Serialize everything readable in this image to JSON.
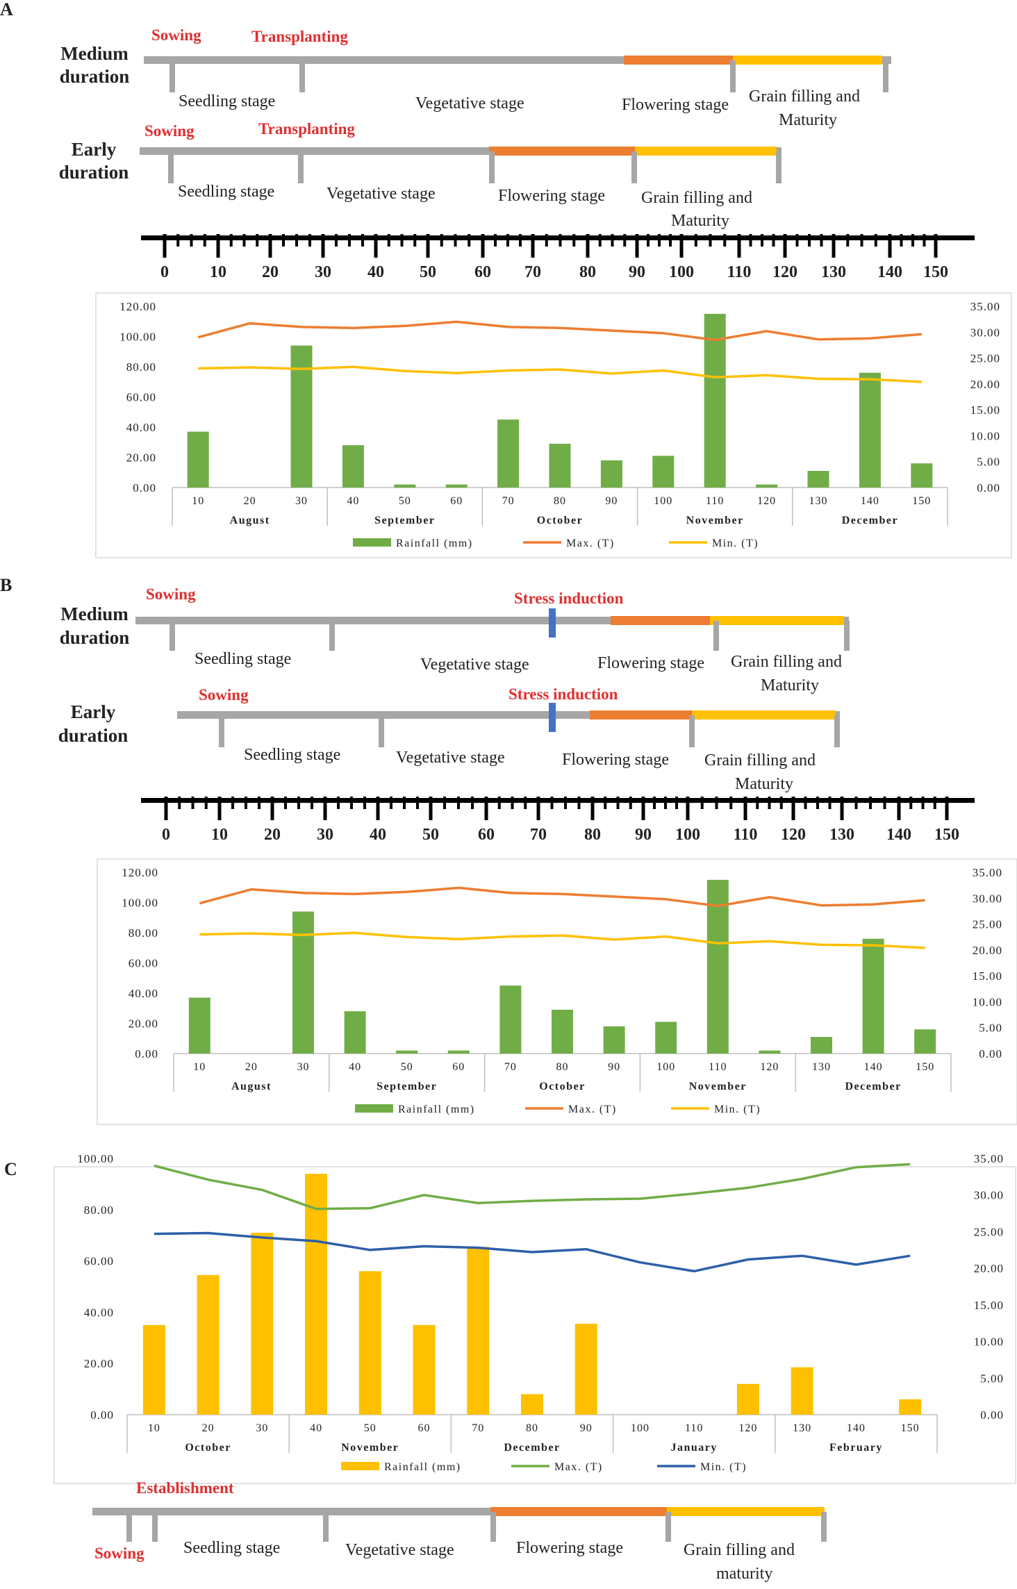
{
  "panels": [
    {
      "label": "A",
      "medium": {
        "label_line1": "Medium",
        "label_line2": "duration",
        "sowing": "Sowing",
        "event": "Transplanting",
        "stages": {
          "seedling": "Seedling stage",
          "vegetative": "Vegetative stage",
          "flowering": "Flowering stage",
          "grain1": "Grain filling and",
          "grain2": "Maturity"
        }
      },
      "early": {
        "label_line1": "Early",
        "label_line2": "duration",
        "sowing": "Sowing",
        "event": "Transplanting",
        "stages": {
          "seedling": "Seedling stage",
          "vegetative": "Vegetative stage",
          "flowering": "Flowering stage",
          "grain1": "Grain filling and",
          "grain2": "Maturity"
        }
      },
      "scale_ticks": [
        "0",
        "10",
        "20",
        "30",
        "40",
        "50",
        "60",
        "70",
        "80",
        "90",
        "100",
        "110",
        "120",
        "130",
        "140",
        "150"
      ]
    },
    {
      "label": "B",
      "medium": {
        "label_line1": "Medium",
        "label_line2": "duration",
        "sowing": "Sowing",
        "event": "Stress induction",
        "stages": {
          "seedling": "Seedling stage",
          "vegetative": "Vegetative stage",
          "flowering": "Flowering stage",
          "grain1": "Grain filling and",
          "grain2": "Maturity"
        }
      },
      "early": {
        "label_line1": "Early",
        "label_line2": "duration",
        "sowing": "Sowing",
        "event": "Stress induction",
        "stages": {
          "seedling": "Seedling stage",
          "vegetative": "Vegetative stage",
          "flowering": "Flowering stage",
          "grain1": "Grain filling and",
          "grain2": "Maturity"
        }
      },
      "scale_ticks": [
        "0",
        "10",
        "20",
        "30",
        "40",
        "50",
        "60",
        "70",
        "80",
        "90",
        "100",
        "110",
        "120",
        "130",
        "140",
        "150"
      ]
    },
    {
      "label": "C",
      "bottom": {
        "establishment": "Establishment",
        "sowing": "Sowing",
        "stages": {
          "seedling": "Seedling stage",
          "vegetative": "Vegetative stage",
          "flowering": "Flowering stage",
          "grain1": "Grain filling and",
          "grain2": "maturity"
        }
      }
    }
  ],
  "colors": {
    "gray": "#a6a6a6",
    "orange": "#ed7d31",
    "yellow": "#ffc000",
    "red_text": "#e03030",
    "blue": "#4472c4",
    "green": "#70ad47",
    "chart_orange": "#ed7d31",
    "chart_yellow": "#ffc000",
    "chart_green": "#70ad47",
    "chart_blue": "#2e5fa8",
    "bar_yellow": "#ffc000"
  },
  "chart_data": [
    {
      "type": "bar",
      "panel": "A",
      "categories": [
        "10",
        "20",
        "30",
        "40",
        "50",
        "60",
        "70",
        "80",
        "90",
        "100",
        "110",
        "120",
        "130",
        "140",
        "150"
      ],
      "months": [
        "August",
        "September",
        "October",
        "November",
        "December"
      ],
      "series": [
        {
          "name": "Rainfall (mm)",
          "axis": "left",
          "values": [
            37,
            0,
            94,
            28,
            2,
            2,
            45,
            29,
            18,
            21,
            115,
            2,
            11,
            76,
            16
          ]
        },
        {
          "name": "Max. (T)",
          "axis": "right",
          "type": "line",
          "values": [
            29,
            31.7,
            31,
            30.8,
            31.2,
            32,
            31,
            30.8,
            30.3,
            29.8,
            28.5,
            30.2,
            28.6,
            28.8,
            29.6
          ]
        },
        {
          "name": "Min. (T)",
          "axis": "right",
          "type": "line",
          "values": [
            23,
            23.2,
            22.9,
            23.3,
            22.5,
            22.1,
            22.6,
            22.8,
            22,
            22.6,
            21.3,
            21.7,
            21,
            20.9,
            20.4
          ]
        }
      ],
      "yleft_ticks": [
        "0.00",
        "20.00",
        "40.00",
        "60.00",
        "80.00",
        "100.00",
        "120.00"
      ],
      "yright_ticks": [
        "0.00",
        "5.00",
        "10.00",
        "15.00",
        "20.00",
        "25.00",
        "30.00",
        "35.00"
      ],
      "ylim_left": [
        0,
        120
      ],
      "ylim_right": [
        0,
        35
      ],
      "legend": [
        "Rainfall (mm)",
        "Max. (T)",
        "Min. (T)"
      ]
    },
    {
      "type": "bar",
      "panel": "B",
      "categories": [
        "10",
        "20",
        "30",
        "40",
        "50",
        "60",
        "70",
        "80",
        "90",
        "100",
        "110",
        "120",
        "130",
        "140",
        "150"
      ],
      "months": [
        "August",
        "September",
        "October",
        "November",
        "December"
      ],
      "series": [
        {
          "name": "Rainfall (mm)",
          "axis": "left",
          "values": [
            37,
            0,
            94,
            28,
            2,
            2,
            45,
            29,
            18,
            21,
            115,
            2,
            11,
            76,
            16
          ]
        },
        {
          "name": "Max. (T)",
          "axis": "right",
          "type": "line",
          "values": [
            29,
            31.7,
            31,
            30.8,
            31.2,
            32,
            31,
            30.8,
            30.3,
            29.8,
            28.5,
            30.2,
            28.6,
            28.8,
            29.6
          ]
        },
        {
          "name": "Min. (T)",
          "axis": "right",
          "type": "line",
          "values": [
            23,
            23.2,
            22.9,
            23.3,
            22.5,
            22.1,
            22.6,
            22.8,
            22,
            22.6,
            21.3,
            21.7,
            21,
            20.9,
            20.4
          ]
        }
      ],
      "yleft_ticks": [
        "0.00",
        "20.00",
        "40.00",
        "60.00",
        "80.00",
        "100.00",
        "120.00"
      ],
      "yright_ticks": [
        "0.00",
        "5.00",
        "10.00",
        "15.00",
        "20.00",
        "25.00",
        "30.00",
        "35.00"
      ],
      "ylim_left": [
        0,
        120
      ],
      "ylim_right": [
        0,
        35
      ],
      "legend": [
        "Rainfall (mm)",
        "Max. (T)",
        "Min. (T)"
      ]
    },
    {
      "type": "bar",
      "panel": "C",
      "categories": [
        "10",
        "20",
        "30",
        "40",
        "50",
        "60",
        "70",
        "80",
        "90",
        "100",
        "110",
        "120",
        "130",
        "140",
        "150"
      ],
      "months": [
        "October",
        "November",
        "December",
        "January",
        "February"
      ],
      "series": [
        {
          "name": "Rainfall (mm)",
          "axis": "left",
          "values": [
            35,
            54.5,
            71,
            94,
            56,
            35,
            65.5,
            8,
            35.5,
            0,
            0,
            12,
            18.5,
            0,
            6
          ]
        },
        {
          "name": "Max. (T)",
          "axis": "right",
          "type": "line",
          "values": [
            34,
            32.1,
            30.7,
            28.1,
            28.2,
            30,
            28.9,
            29.2,
            29.4,
            29.5,
            30.2,
            31,
            32.2,
            33.8,
            34.2
          ]
        },
        {
          "name": "Min. (T)",
          "axis": "right",
          "type": "line",
          "values": [
            24.7,
            24.8,
            24.2,
            23.7,
            22.5,
            23,
            22.8,
            22.2,
            22.6,
            20.8,
            19.6,
            21.2,
            21.7,
            20.5,
            21.7
          ]
        }
      ],
      "yleft_ticks": [
        "0.00",
        "20.00",
        "40.00",
        "60.00",
        "80.00",
        "100.00"
      ],
      "yright_ticks": [
        "0.00",
        "5.00",
        "10.00",
        "15.00",
        "20.00",
        "25.00",
        "30.00",
        "35.00"
      ],
      "ylim_left": [
        0,
        100
      ],
      "ylim_right": [
        0,
        35
      ],
      "legend": [
        "Rainfall (mm)",
        "Max. (T)",
        "Min. (T)"
      ]
    }
  ]
}
